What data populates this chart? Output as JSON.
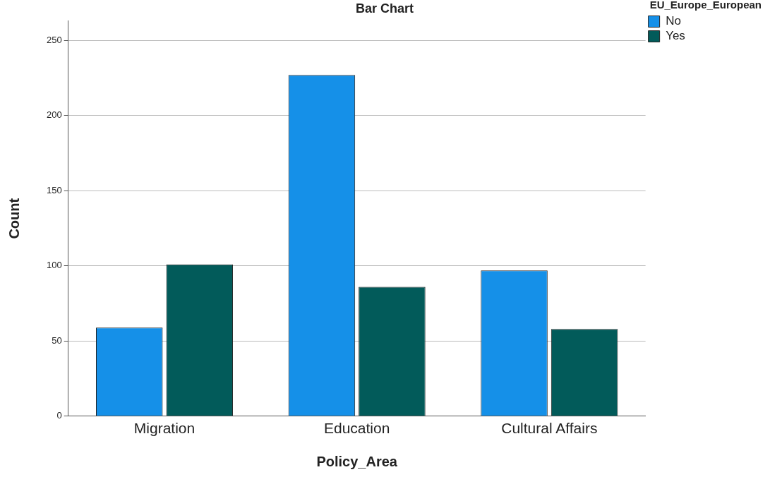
{
  "chart_data": {
    "type": "bar",
    "title": "Bar Chart",
    "xlabel": "Policy_Area",
    "ylabel": "Count",
    "legend_title": "EU_Europe_European",
    "categories": [
      "Migration",
      "Education",
      "Cultural Affairs"
    ],
    "series": [
      {
        "name": "No",
        "color": "#1590e8",
        "values": [
          59,
          227,
          97
        ]
      },
      {
        "name": "Yes",
        "color": "#025b5a",
        "values": [
          101,
          86,
          58
        ]
      }
    ],
    "ylim": [
      0,
      263
    ],
    "yticks": [
      0,
      50,
      100,
      150,
      200,
      250
    ],
    "grid": "y",
    "legend": "top right"
  }
}
